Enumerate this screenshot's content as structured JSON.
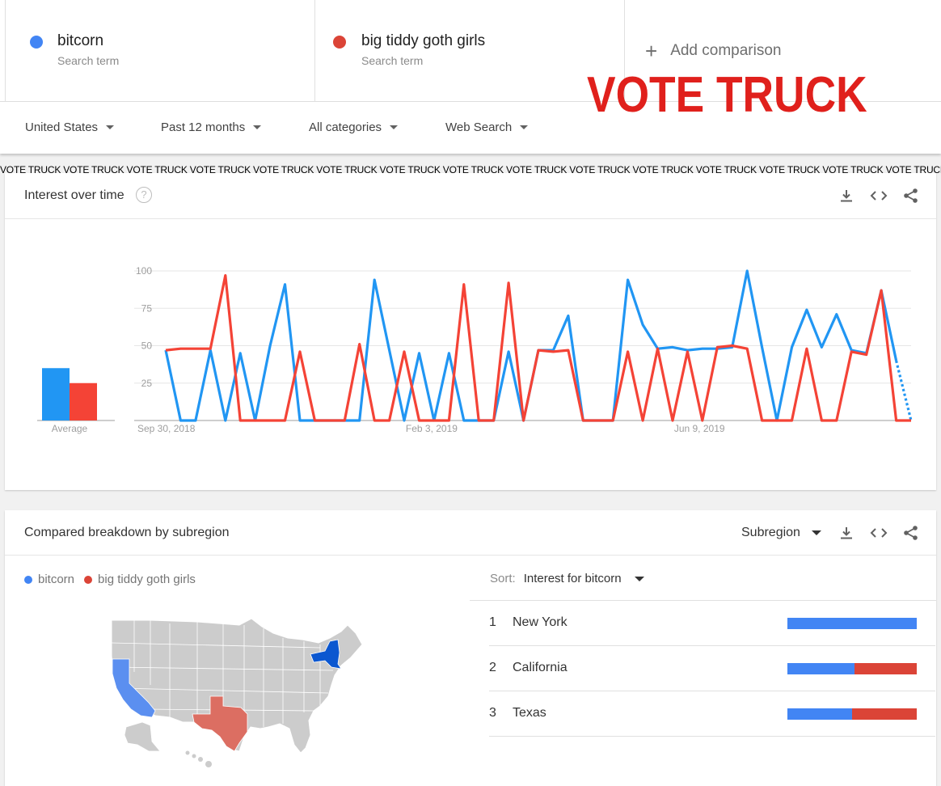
{
  "terms": [
    {
      "name": "bitcorn",
      "sub": "Search term",
      "color": "#4285f4"
    },
    {
      "name": "big tiddy goth girls",
      "sub": "Search term",
      "color": "#db4437"
    }
  ],
  "add_comparison": "Add comparison",
  "overlay_text": "VOTE TRUCK",
  "banner_text": "VOTE TRUCK VOTE TRUCK VOTE TRUCK VOTE TRUCK VOTE TRUCK VOTE TRUCK VOTE TRUCK VOTE TRUCK VOTE TRUCK VOTE TRUCK VOTE TRUCK VOTE TRUCK VOTE TRUCK VOTE TRUCK VOTE TRUCK VOTE TRUCK VOTE TRUCK",
  "filters": {
    "region": "United States",
    "time": "Past 12 months",
    "category": "All categories",
    "search_type": "Web Search"
  },
  "interest": {
    "title": "Interest over time",
    "help_glyph": "?",
    "icons": [
      "download-icon",
      "embed-icon",
      "share-icon"
    ]
  },
  "chart_data": {
    "type": "line",
    "title": "Interest over time",
    "ylim": [
      0,
      100
    ],
    "yticks": [
      100,
      75,
      50,
      25
    ],
    "xtick_labels": [
      {
        "label": "Sep 30, 2018",
        "index": 0
      },
      {
        "label": "Feb 3, 2019",
        "index": 18
      },
      {
        "label": "Jun 9, 2019",
        "index": 36
      }
    ],
    "average": {
      "label": "Average",
      "values": [
        35,
        25
      ]
    },
    "colors": [
      "#2196f3",
      "#f44336"
    ],
    "series": [
      {
        "name": "bitcorn",
        "values": [
          47,
          0,
          0,
          47,
          0,
          45,
          0,
          50,
          91,
          0,
          0,
          0,
          0,
          0,
          94,
          47,
          0,
          45,
          0,
          45,
          0,
          0,
          0,
          46,
          0,
          47,
          47,
          70,
          0,
          0,
          0,
          94,
          64,
          48,
          49,
          47,
          48,
          48,
          49,
          100,
          49,
          0,
          49,
          74,
          49,
          71,
          47,
          45,
          87,
          40,
          0
        ]
      },
      {
        "name": "big tiddy goth girls",
        "values": [
          47,
          48,
          48,
          48,
          97,
          0,
          0,
          0,
          0,
          46,
          0,
          0,
          0,
          51,
          0,
          0,
          46,
          0,
          0,
          0,
          91,
          0,
          0,
          92,
          0,
          47,
          46,
          47,
          0,
          0,
          0,
          46,
          0,
          48,
          0,
          46,
          0,
          49,
          50,
          48,
          0,
          0,
          0,
          48,
          0,
          0,
          46,
          44,
          87,
          0,
          0
        ]
      }
    ]
  },
  "subregion": {
    "title": "Compared breakdown by subregion",
    "select_label": "Subregion",
    "legend": [
      {
        "name": "bitcorn",
        "color": "#4285f4"
      },
      {
        "name": "big tiddy goth girls",
        "color": "#db4437"
      }
    ],
    "sort_label": "Sort:",
    "sort_value": "Interest for bitcorn",
    "ranks": [
      {
        "rank": "1",
        "name": "New York",
        "share_a": 100,
        "share_b": 0
      },
      {
        "rank": "2",
        "name": "California",
        "share_a": 52,
        "share_b": 48
      },
      {
        "rank": "3",
        "name": "Texas",
        "share_a": 50,
        "share_b": 50
      }
    ],
    "map_colors": {
      "base": "#cccccc",
      "new_york": "#0b57d0",
      "california": "#5b8ff0",
      "texas": "#dc6e62"
    }
  }
}
